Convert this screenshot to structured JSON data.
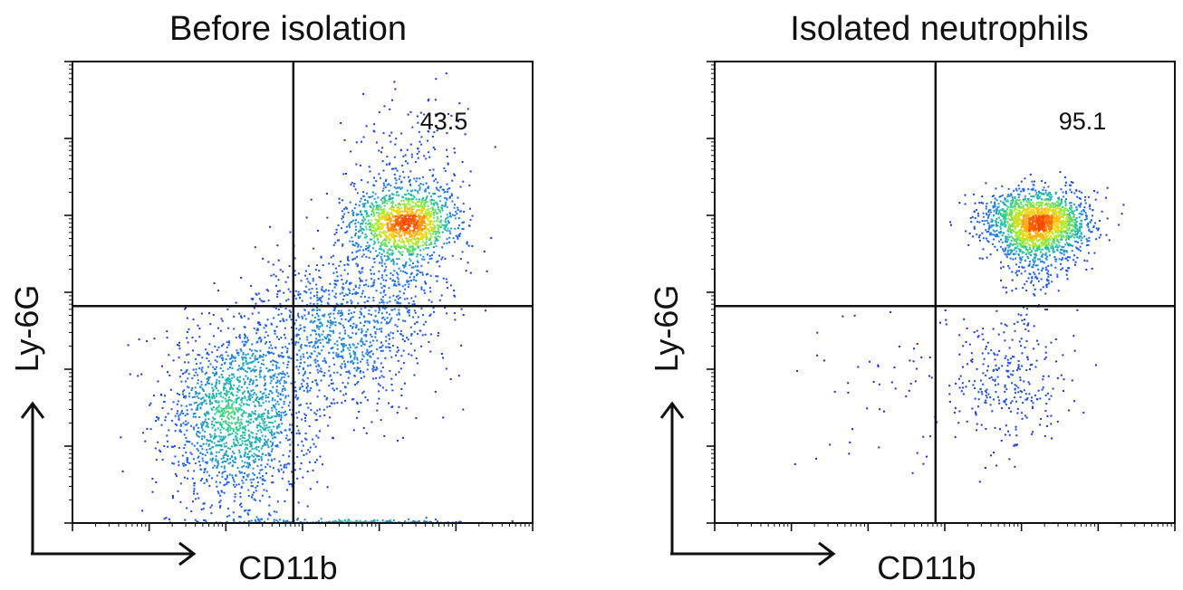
{
  "chart_data": [
    {
      "type": "scatter",
      "title": "Before isolation",
      "xlabel": "CD11b",
      "ylabel": "Ly-6G",
      "x_scale": "log",
      "y_scale": "log",
      "xlim": [
        0,
        1
      ],
      "ylim": [
        0,
        1
      ],
      "gate": {
        "x": 0.48,
        "y": 0.47
      },
      "quadrant_labels": [
        {
          "quadrant": "upper-right",
          "value": "43.5"
        }
      ],
      "populations": [
        {
          "x": 0.36,
          "y": 0.23,
          "sx": 0.08,
          "sy": 0.1,
          "n": 1700
        },
        {
          "x": 0.58,
          "y": 0.42,
          "sx": 0.09,
          "sy": 0.09,
          "n": 1000
        },
        {
          "x": 0.72,
          "y": 0.64,
          "sx": 0.065,
          "sy": 0.12,
          "n": 650
        },
        {
          "x": 0.725,
          "y": 0.65,
          "sx": 0.055,
          "sy": 0.033,
          "n": 1100
        },
        {
          "x": 0.62,
          "y": 0.0,
          "sx": 0.14,
          "sy": 0.004,
          "n": 250
        }
      ]
    },
    {
      "type": "scatter",
      "title": "Isolated neutrophils",
      "xlabel": "CD11b",
      "ylabel": "Ly-6G",
      "x_scale": "log",
      "y_scale": "log",
      "xlim": [
        0,
        1
      ],
      "ylim": [
        0,
        1
      ],
      "gate": {
        "x": 0.48,
        "y": 0.47
      },
      "quadrant_labels": [
        {
          "quadrant": "upper-right",
          "value": "95.1"
        }
      ],
      "populations": [
        {
          "x": 0.7,
          "y": 0.65,
          "sx": 0.055,
          "sy": 0.035,
          "n": 1900
        },
        {
          "x": 0.7,
          "y": 0.58,
          "sx": 0.04,
          "sy": 0.05,
          "n": 200
        },
        {
          "x": 0.64,
          "y": 0.32,
          "sx": 0.06,
          "sy": 0.08,
          "n": 300
        },
        {
          "x": 0.4,
          "y": 0.28,
          "sx": 0.1,
          "sy": 0.08,
          "n": 60
        }
      ]
    }
  ],
  "colors": {
    "density_low": "#1b1bd6",
    "density_mid": "#1ec8a0",
    "density_high": "#ff4a00",
    "axes": "#111111"
  }
}
